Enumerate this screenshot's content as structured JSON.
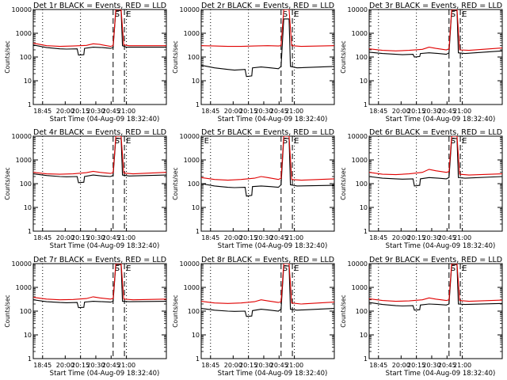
{
  "chart_data": [
    {
      "type": "line",
      "title": "Det 1r BLACK = Events, RED = LLD",
      "xlabel": "Start Time (04-Aug-09 18:32:40)",
      "ylabel": "Counts/sec",
      "yscale": "log",
      "ylim": [
        1,
        10000
      ],
      "y_tick_labels": [
        "1",
        "10",
        "100",
        "1000",
        "10000"
      ],
      "x_tick_labels": [
        "18:45",
        "20:00",
        "20:15",
        "20:30",
        "20:45",
        "21:00"
      ],
      "markers": [
        {
          "label": "S",
          "x": "20:28"
        },
        {
          "label": "E",
          "x": "20:38"
        }
      ],
      "series": [
        {
          "name": "Events",
          "color": "#000000",
          "x": [
            0,
            0.1,
            0.2,
            0.25,
            0.33,
            0.34,
            0.38,
            0.385,
            0.45,
            0.52,
            0.55,
            0.58,
            0.6,
            0.62,
            0.66,
            0.67,
            0.7,
            1.0
          ],
          "y": [
            320,
            250,
            220,
            215,
            220,
            120,
            125,
            230,
            260,
            250,
            240,
            230,
            250,
            9000,
            9000,
            300,
            260,
            260
          ]
        },
        {
          "name": "LLD",
          "color": "#e00000",
          "x": [
            0,
            0.1,
            0.2,
            0.3,
            0.4,
            0.45,
            0.5,
            0.55,
            0.58,
            0.6,
            0.62,
            0.66,
            0.68,
            0.72,
            1.0
          ],
          "y": [
            380,
            300,
            280,
            290,
            310,
            360,
            340,
            300,
            280,
            300,
            10000,
            10000,
            320,
            300,
            300
          ]
        }
      ]
    },
    {
      "type": "line",
      "title": "Det 2r BLACK = Events, RED = LLD",
      "xlabel": "Start Time (04-Aug-09 18:32:40)",
      "ylabel": "Counts/sec",
      "yscale": "log",
      "ylim": [
        1,
        10000
      ],
      "y_tick_labels": [
        "1",
        "10",
        "100",
        "1000",
        "10000"
      ],
      "x_tick_labels": [
        "18:45",
        "20:00",
        "20:15",
        "20:30",
        "20:45",
        "21:00"
      ],
      "markers": [
        {
          "label": "S",
          "x": "20:28"
        },
        {
          "label": "E",
          "x": "20:38"
        }
      ],
      "series": [
        {
          "name": "Events",
          "color": "#000000",
          "x": [
            0,
            0.1,
            0.2,
            0.25,
            0.33,
            0.34,
            0.38,
            0.385,
            0.45,
            0.52,
            0.58,
            0.6,
            0.62,
            0.66,
            0.67,
            0.72,
            1.0
          ],
          "y": [
            45,
            35,
            30,
            28,
            30,
            15,
            16,
            35,
            38,
            35,
            32,
            40,
            4000,
            4000,
            40,
            35,
            40
          ]
        },
        {
          "name": "LLD",
          "color": "#e00000",
          "x": [
            0,
            0.1,
            0.2,
            0.3,
            0.4,
            0.5,
            0.58,
            0.6,
            0.62,
            0.66,
            0.68,
            0.75,
            1.0
          ],
          "y": [
            300,
            290,
            280,
            280,
            290,
            300,
            290,
            300,
            10000,
            10000,
            300,
            280,
            300
          ]
        }
      ]
    },
    {
      "type": "line",
      "title": "Det 3r BLACK = Events, RED = LLD",
      "xlabel": "Start Time (04-Aug-09 18:32:40)",
      "ylabel": "Counts/sec",
      "yscale": "log",
      "ylim": [
        1,
        10000
      ],
      "y_tick_labels": [
        "1",
        "10",
        "100",
        "1000",
        "10000"
      ],
      "x_tick_labels": [
        "18:45",
        "20:00",
        "20:15",
        "20:30",
        "20:45",
        "21:00"
      ],
      "markers": [
        {
          "label": "S",
          "x": "20:28"
        },
        {
          "label": "E",
          "x": "20:38"
        }
      ],
      "series": [
        {
          "name": "Events",
          "color": "#000000",
          "x": [
            0,
            0.1,
            0.2,
            0.25,
            0.33,
            0.34,
            0.38,
            0.385,
            0.45,
            0.52,
            0.58,
            0.6,
            0.62,
            0.66,
            0.67,
            0.72,
            1.0
          ],
          "y": [
            160,
            140,
            130,
            125,
            130,
            100,
            105,
            140,
            150,
            140,
            130,
            150,
            9000,
            9000,
            150,
            140,
            180
          ]
        },
        {
          "name": "LLD",
          "color": "#e00000",
          "x": [
            0,
            0.1,
            0.2,
            0.3,
            0.4,
            0.45,
            0.5,
            0.58,
            0.6,
            0.62,
            0.66,
            0.68,
            0.75,
            1.0
          ],
          "y": [
            220,
            190,
            180,
            190,
            210,
            260,
            230,
            200,
            220,
            10000,
            10000,
            200,
            190,
            240
          ]
        }
      ]
    },
    {
      "type": "line",
      "title": "Det 4r BLACK = Events, RED = LLD",
      "xlabel": "Start Time (04-Aug-09 18:32:40)",
      "ylabel": "Counts/sec",
      "yscale": "log",
      "ylim": [
        1,
        10000
      ],
      "y_tick_labels": [
        "1",
        "10",
        "100",
        "1000",
        "10000"
      ],
      "x_tick_labels": [
        "18:45",
        "20:00",
        "20:15",
        "20:30",
        "20:45",
        "21:00"
      ],
      "markers": [
        {
          "label": "S",
          "x": "20:28"
        },
        {
          "label": "E",
          "x": "20:38"
        }
      ],
      "series": [
        {
          "name": "Events",
          "color": "#000000",
          "x": [
            0,
            0.1,
            0.2,
            0.25,
            0.33,
            0.34,
            0.38,
            0.385,
            0.45,
            0.52,
            0.58,
            0.6,
            0.62,
            0.66,
            0.67,
            0.72,
            1.0
          ],
          "y": [
            260,
            220,
            200,
            195,
            200,
            110,
            115,
            200,
            230,
            210,
            200,
            220,
            8000,
            8000,
            230,
            210,
            230
          ]
        },
        {
          "name": "LLD",
          "color": "#e00000",
          "x": [
            0,
            0.1,
            0.2,
            0.3,
            0.4,
            0.45,
            0.5,
            0.58,
            0.6,
            0.62,
            0.66,
            0.68,
            0.75,
            1.0
          ],
          "y": [
            300,
            260,
            250,
            260,
            290,
            330,
            300,
            270,
            290,
            10000,
            10000,
            280,
            260,
            300
          ]
        }
      ]
    },
    {
      "type": "line",
      "title": "Det 5r BLACK = Events, RED = LLD",
      "xlabel": "Start Time (04-Aug-09 18:32:40)",
      "ylabel": "Counts/sec",
      "yscale": "log",
      "ylim": [
        1,
        10000
      ],
      "y_tick_labels": [
        "1",
        "10",
        "100",
        "1000",
        "10000"
      ],
      "x_tick_labels": [
        "18:45",
        "20:00",
        "20:15",
        "20:30",
        "20:45",
        "21:00"
      ],
      "markers": [
        {
          "label": "E",
          "x": "18:32"
        },
        {
          "label": "S",
          "x": "20:28"
        },
        {
          "label": "E",
          "x": "20:38"
        }
      ],
      "series": [
        {
          "name": "Events",
          "color": "#000000",
          "x": [
            0,
            0.1,
            0.2,
            0.25,
            0.33,
            0.34,
            0.38,
            0.385,
            0.45,
            0.52,
            0.58,
            0.6,
            0.62,
            0.66,
            0.67,
            0.72,
            1.0
          ],
          "y": [
            100,
            80,
            70,
            68,
            70,
            30,
            32,
            75,
            80,
            75,
            70,
            90,
            8000,
            8000,
            90,
            80,
            85
          ]
        },
        {
          "name": "LLD",
          "color": "#e00000",
          "x": [
            0,
            0.1,
            0.2,
            0.3,
            0.4,
            0.45,
            0.5,
            0.58,
            0.6,
            0.62,
            0.66,
            0.68,
            0.75,
            1.0
          ],
          "y": [
            180,
            150,
            140,
            150,
            170,
            200,
            180,
            150,
            170,
            10000,
            10000,
            150,
            140,
            160
          ]
        }
      ]
    },
    {
      "type": "line",
      "title": "Det 6r BLACK = Events, RED = LLD",
      "xlabel": "Start Time (04-Aug-09 18:32:40)",
      "ylabel": "Counts/sec",
      "yscale": "log",
      "ylim": [
        1,
        10000
      ],
      "y_tick_labels": [
        "1",
        "10",
        "100",
        "1000",
        "10000"
      ],
      "x_tick_labels": [
        "18:45",
        "20:00",
        "20:15",
        "20:30",
        "20:45",
        "21:00"
      ],
      "markers": [
        {
          "label": "S",
          "x": "20:28"
        },
        {
          "label": "E",
          "x": "20:38"
        }
      ],
      "series": [
        {
          "name": "Events",
          "color": "#000000",
          "x": [
            0,
            0.1,
            0.2,
            0.25,
            0.33,
            0.34,
            0.38,
            0.385,
            0.45,
            0.52,
            0.58,
            0.6,
            0.62,
            0.66,
            0.67,
            0.72,
            1.0
          ],
          "y": [
            200,
            170,
            160,
            155,
            160,
            80,
            85,
            160,
            180,
            170,
            160,
            180,
            8000,
            8000,
            180,
            170,
            200
          ]
        },
        {
          "name": "LLD",
          "color": "#e00000",
          "x": [
            0,
            0.1,
            0.2,
            0.3,
            0.4,
            0.45,
            0.5,
            0.58,
            0.6,
            0.62,
            0.66,
            0.68,
            0.75,
            1.0
          ],
          "y": [
            300,
            250,
            240,
            260,
            300,
            400,
            350,
            300,
            320,
            10000,
            10000,
            250,
            230,
            260
          ]
        }
      ]
    },
    {
      "type": "line",
      "title": "Det 7r BLACK = Events, RED = LLD",
      "xlabel": "Start Time (04-Aug-09 18:32:40)",
      "ylabel": "Counts/sec",
      "yscale": "log",
      "ylim": [
        1,
        10000
      ],
      "y_tick_labels": [
        "1",
        "10",
        "100",
        "1000",
        "10000"
      ],
      "x_tick_labels": [
        "18:45",
        "20:00",
        "20:15",
        "20:30",
        "20:45",
        "21:00"
      ],
      "markers": [
        {
          "label": "S",
          "x": "20:28"
        },
        {
          "label": "E",
          "x": "20:38"
        }
      ],
      "series": [
        {
          "name": "Events",
          "color": "#000000",
          "x": [
            0,
            0.1,
            0.2,
            0.25,
            0.33,
            0.34,
            0.38,
            0.385,
            0.45,
            0.52,
            0.58,
            0.6,
            0.62,
            0.66,
            0.67,
            0.72,
            1.0
          ],
          "y": [
            300,
            250,
            230,
            225,
            230,
            140,
            145,
            240,
            260,
            250,
            240,
            260,
            9000,
            9000,
            260,
            250,
            260
          ]
        },
        {
          "name": "LLD",
          "color": "#e00000",
          "x": [
            0,
            0.1,
            0.2,
            0.3,
            0.4,
            0.45,
            0.5,
            0.58,
            0.6,
            0.62,
            0.66,
            0.68,
            0.75,
            1.0
          ],
          "y": [
            380,
            320,
            300,
            310,
            340,
            400,
            360,
            320,
            340,
            10000,
            10000,
            320,
            300,
            320
          ]
        }
      ]
    },
    {
      "type": "line",
      "title": "Det 8r BLACK = Events, RED = LLD",
      "xlabel": "Start Time (04-Aug-09 18:32:40)",
      "ylabel": "Counts/sec",
      "yscale": "log",
      "ylim": [
        1,
        10000
      ],
      "y_tick_labels": [
        "1",
        "10",
        "100",
        "1000",
        "10000"
      ],
      "x_tick_labels": [
        "18:45",
        "20:00",
        "20:15",
        "20:30",
        "20:45",
        "21:00"
      ],
      "markers": [
        {
          "label": "S",
          "x": "20:28"
        },
        {
          "label": "E",
          "x": "20:38"
        }
      ],
      "series": [
        {
          "name": "Events",
          "color": "#000000",
          "x": [
            0,
            0.1,
            0.2,
            0.25,
            0.33,
            0.34,
            0.38,
            0.385,
            0.45,
            0.52,
            0.58,
            0.6,
            0.62,
            0.66,
            0.67,
            0.72,
            1.0
          ],
          "y": [
            130,
            110,
            100,
            98,
            100,
            60,
            62,
            105,
            120,
            110,
            100,
            120,
            8000,
            8000,
            120,
            110,
            130
          ]
        },
        {
          "name": "LLD",
          "color": "#e00000",
          "x": [
            0,
            0.1,
            0.2,
            0.3,
            0.4,
            0.45,
            0.5,
            0.58,
            0.6,
            0.62,
            0.66,
            0.68,
            0.75,
            1.0
          ],
          "y": [
            260,
            220,
            210,
            220,
            250,
            300,
            270,
            230,
            250,
            10000,
            10000,
            220,
            200,
            240
          ]
        }
      ]
    },
    {
      "type": "line",
      "title": "Det 9r BLACK = Events, RED = LLD",
      "xlabel": "Start Time (04-Aug-09 18:32:40)",
      "ylabel": "Counts/sec",
      "yscale": "log",
      "ylim": [
        1,
        10000
      ],
      "y_tick_labels": [
        "1",
        "10",
        "100",
        "1000",
        "10000"
      ],
      "x_tick_labels": [
        "18:45",
        "20:00",
        "20:15",
        "20:30",
        "20:45",
        "21:00"
      ],
      "markers": [
        {
          "label": "S",
          "x": "20:28"
        },
        {
          "label": "E",
          "x": "20:38"
        }
      ],
      "series": [
        {
          "name": "Events",
          "color": "#000000",
          "x": [
            0,
            0.1,
            0.2,
            0.25,
            0.33,
            0.34,
            0.38,
            0.385,
            0.45,
            0.52,
            0.58,
            0.6,
            0.62,
            0.66,
            0.67,
            0.72,
            1.0
          ],
          "y": [
            230,
            190,
            170,
            165,
            170,
            110,
            115,
            180,
            200,
            190,
            180,
            200,
            9000,
            9000,
            200,
            190,
            210
          ]
        },
        {
          "name": "LLD",
          "color": "#e00000",
          "x": [
            0,
            0.1,
            0.2,
            0.3,
            0.4,
            0.45,
            0.5,
            0.58,
            0.6,
            0.62,
            0.66,
            0.68,
            0.75,
            1.0
          ],
          "y": [
            330,
            280,
            260,
            270,
            300,
            360,
            320,
            280,
            300,
            10000,
            10000,
            280,
            260,
            290
          ]
        }
      ]
    }
  ]
}
